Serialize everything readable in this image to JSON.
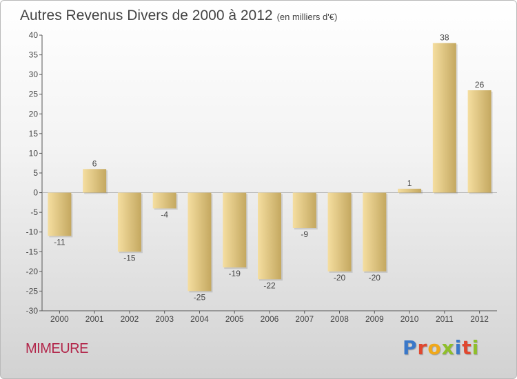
{
  "title": "Autres Revenus Divers de 2000 à 2012",
  "unit": "(en milliers d'€)",
  "place": "MIMEURE",
  "logo": {
    "text": "Proxiti",
    "colors": [
      "#3a78c9",
      "#e0482f",
      "#f0a81a",
      "#8fbf2a",
      "#3a78c9",
      "#e0482f",
      "#8fbf2a"
    ]
  },
  "colors": {
    "bar_light": "#f5dea0",
    "bar_dark": "#c4a860",
    "text": "#444444"
  },
  "chart_data": {
    "type": "bar",
    "categories": [
      "2000",
      "2001",
      "2002",
      "2003",
      "2004",
      "2005",
      "2006",
      "2007",
      "2008",
      "2009",
      "2010",
      "2011",
      "2012"
    ],
    "values": [
      -11,
      6,
      -15,
      -4,
      -25,
      -19,
      -22,
      -9,
      -20,
      -20,
      1,
      38,
      26
    ],
    "ylim": [
      -30,
      40
    ],
    "yticks": [
      40,
      35,
      30,
      25,
      20,
      15,
      10,
      5,
      0,
      -5,
      -10,
      -15,
      -20,
      -25,
      -30
    ],
    "grid": false,
    "title": "Autres Revenus Divers de 2000 à 2012",
    "xlabel": "",
    "ylabel": ""
  }
}
